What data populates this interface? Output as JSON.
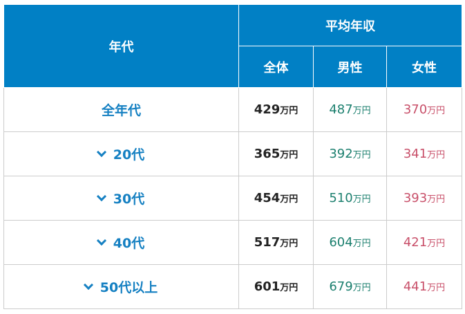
{
  "header": {
    "age": "年代",
    "avg": "平均年収",
    "all": "全体",
    "male": "男性",
    "female": "女性"
  },
  "unit": "万円",
  "colors": {
    "header": "#0180c5",
    "age": "#1580c2",
    "male": "#1b7f6e",
    "female": "#c84f69"
  },
  "rows": [
    {
      "age": "全年代",
      "expandable": false,
      "all": "429",
      "male": "487",
      "female": "370"
    },
    {
      "age": "20代",
      "expandable": true,
      "all": "365",
      "male": "392",
      "female": "341"
    },
    {
      "age": "30代",
      "expandable": true,
      "all": "454",
      "male": "510",
      "female": "393"
    },
    {
      "age": "40代",
      "expandable": true,
      "all": "517",
      "male": "604",
      "female": "421"
    },
    {
      "age": "50代以上",
      "expandable": true,
      "all": "601",
      "male": "679",
      "female": "441"
    }
  ]
}
